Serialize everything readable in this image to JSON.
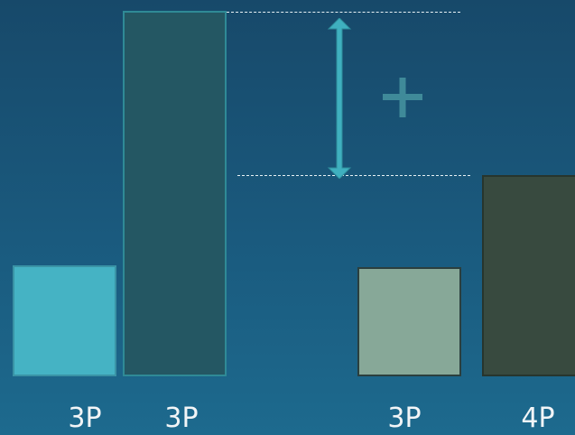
{
  "colors": {
    "bar_1_fill": "#45b3c4",
    "bar_1_border": "#3a93a5",
    "bar_2_fill": "#245763",
    "bar_2_border": "#2f8a96",
    "bar_3_fill": "#87a898",
    "bar_3_border": "#2b3f3e",
    "bar_4_fill": "#384a3f",
    "bar_4_border": "#27352d",
    "arrow": "#3fb0bf",
    "plus": "#3f8a99"
  },
  "bars": [
    {
      "label": "3P",
      "value": 123
    },
    {
      "label": "3P",
      "value": 405
    },
    {
      "label": "3P",
      "value": 121
    },
    {
      "label": "4P",
      "value": 223
    }
  ],
  "icons": {
    "arrow": "double-headed-vertical-arrow",
    "sign": "plus"
  }
}
